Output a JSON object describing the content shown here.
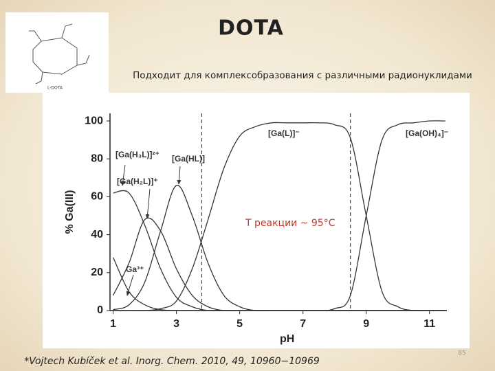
{
  "slide": {
    "title": "DOTA",
    "subtitle": "Подходит для комплексобразования с различными радионуклидами",
    "molecule_label": "L-DOTA",
    "citation": "*Vojtech Kubíček et al. Inorg. Chem. 2010, 49, 10960−10969",
    "page_number": "85"
  },
  "chart_data": {
    "type": "line",
    "x_label": "pH",
    "y_label": "% Ga(III)",
    "x": [
      1,
      1.5,
      2,
      2.5,
      3,
      3.5,
      4,
      4.5,
      5,
      5.5,
      6,
      6.5,
      7,
      7.5,
      8,
      8.5,
      9,
      9.5,
      10,
      10.5,
      11,
      11.5
    ],
    "series": [
      {
        "name": "Ga³⁺",
        "color": "#333333",
        "values": [
          28,
          10,
          3,
          0.5,
          0,
          0,
          0,
          0,
          0,
          0,
          0,
          0,
          0,
          0,
          0,
          0,
          0,
          0,
          0,
          0,
          0,
          0
        ]
      },
      {
        "name": "[Ga(H₃L)]²⁺",
        "color": "#333333",
        "values": [
          62,
          62,
          45,
          22,
          7,
          2,
          0,
          0,
          0,
          0,
          0,
          0,
          0,
          0,
          0,
          0,
          0,
          0,
          0,
          0,
          0,
          0
        ]
      },
      {
        "name": "[Ga(H₂L)]⁺",
        "color": "#333333",
        "values": [
          8,
          25,
          48,
          42,
          22,
          8,
          2,
          0,
          0,
          0,
          0,
          0,
          0,
          0,
          0,
          0,
          0,
          0,
          0,
          0,
          0,
          0
        ]
      },
      {
        "name": "[Ga(HL)]",
        "color": "#333333",
        "values": [
          0.5,
          3,
          15,
          42,
          66,
          50,
          25,
          8,
          2,
          0,
          0,
          0,
          0,
          0,
          0,
          0,
          0,
          0,
          0,
          0,
          0,
          0
        ]
      },
      {
        "name": "[Ga(L)]⁻",
        "color": "#333333",
        "values": [
          0,
          0,
          0,
          1,
          5,
          22,
          48,
          75,
          92,
          97,
          99,
          99,
          99,
          99,
          98,
          91,
          50,
          10,
          2,
          0,
          0,
          0
        ]
      },
      {
        "name": "[Ga(OH)₄]⁻",
        "color": "#333333",
        "values": [
          0,
          0,
          0,
          0,
          0,
          0,
          0,
          0,
          0,
          0,
          0,
          0,
          0,
          0,
          1,
          8,
          50,
          90,
          98,
          99,
          100,
          100
        ]
      }
    ],
    "vlines": [
      3.8,
      8.5
    ],
    "annotation": "T реакции ~ 95°C",
    "xlim": [
      0.9,
      11.55
    ],
    "ylim": [
      0,
      104
    ],
    "xticks": [
      1,
      3,
      5,
      7,
      9,
      11
    ],
    "yticks": [
      0,
      20,
      40,
      60,
      80,
      100
    ]
  }
}
